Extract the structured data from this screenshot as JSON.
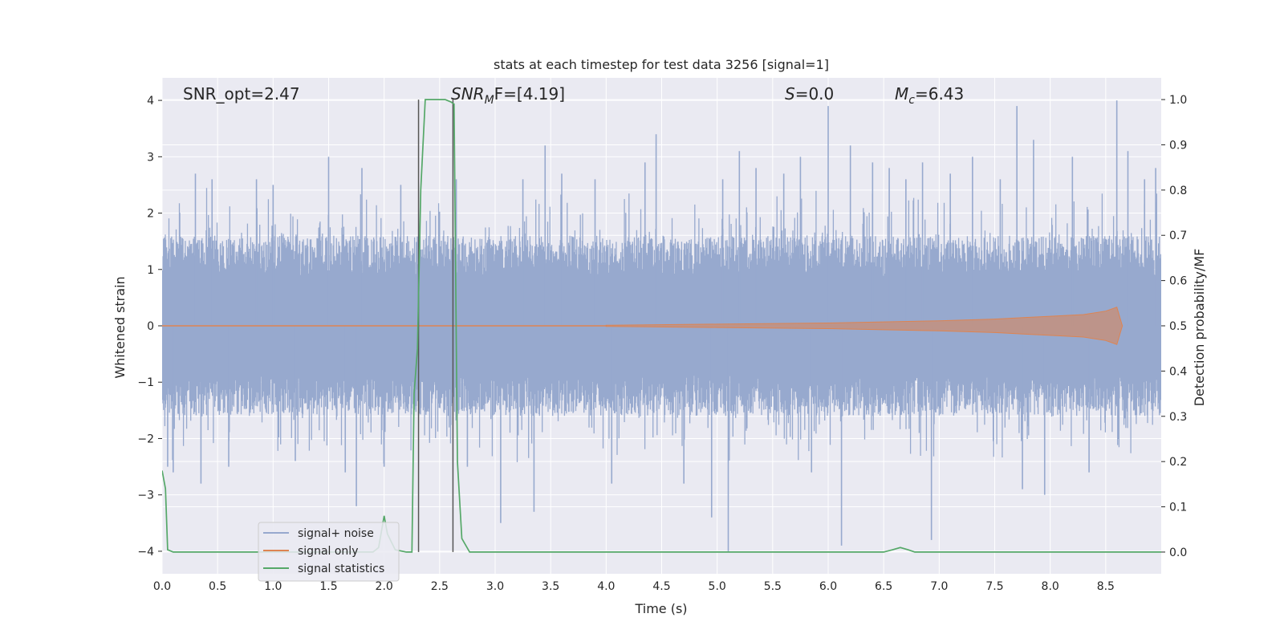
{
  "chart_data": {
    "type": "line",
    "title": "stats at each timestep for test data 3256 [signal=1]",
    "xlabel": "Time (s)",
    "ylabel": "Whitened strain",
    "y2label": "Detection probability/MF",
    "xlim": [
      0.0,
      9.0
    ],
    "ylim": [
      -4.4,
      4.4
    ],
    "y2lim": [
      -0.048,
      1.048
    ],
    "xticks": [
      "0.0",
      "0.5",
      "1.0",
      "1.5",
      "2.0",
      "2.5",
      "3.0",
      "3.5",
      "4.0",
      "4.5",
      "5.0",
      "5.5",
      "6.0",
      "6.5",
      "7.0",
      "7.5",
      "8.0",
      "8.5"
    ],
    "yticks": [
      "−4",
      "−3",
      "−2",
      "−1",
      "0",
      "1",
      "2",
      "3",
      "4"
    ],
    "y2ticks": [
      "0.0",
      "0.1",
      "0.2",
      "0.3",
      "0.4",
      "0.5",
      "0.6",
      "0.7",
      "0.8",
      "0.9",
      "1.0"
    ],
    "grid": true,
    "legend_position": "lower-left",
    "annotations": {
      "snr_opt": "SNR_opt=2.47",
      "snr_mf_main": "SNR",
      "snr_mf_sub": "M",
      "snr_mf_rest": "F=[4.19]",
      "s_main": "S",
      "s_rest": "=0.0",
      "mc_main": "M",
      "mc_sub": "c",
      "mc_rest": "=6.43"
    },
    "vlines_x": [
      2.31,
      2.62
    ],
    "series": [
      {
        "name": "signal+ noise",
        "color": "#97a9ce",
        "style": "dense noise band, amplitude mostly within ±1.6 with spikes up to ±4",
        "band": [
          -1.6,
          1.6
        ],
        "spikes": [
          [
            0.05,
            -2.5
          ],
          [
            0.1,
            -2.6
          ],
          [
            0.3,
            2.7
          ],
          [
            0.35,
            -2.8
          ],
          [
            0.45,
            2.6
          ],
          [
            0.6,
            -2.5
          ],
          [
            0.85,
            2.6
          ],
          [
            1.0,
            2.5
          ],
          [
            1.2,
            -2.4
          ],
          [
            1.5,
            3.0
          ],
          [
            1.65,
            -2.6
          ],
          [
            1.75,
            -3.2
          ],
          [
            1.8,
            2.8
          ],
          [
            2.0,
            -2.5
          ],
          [
            2.15,
            2.5
          ],
          [
            2.65,
            2.6
          ],
          [
            2.75,
            -2.5
          ],
          [
            3.05,
            -3.5
          ],
          [
            3.25,
            2.6
          ],
          [
            3.35,
            -3.3
          ],
          [
            3.45,
            3.2
          ],
          [
            3.6,
            2.7
          ],
          [
            3.9,
            2.6
          ],
          [
            4.05,
            -2.8
          ],
          [
            4.35,
            2.9
          ],
          [
            4.45,
            3.4
          ],
          [
            4.7,
            -2.8
          ],
          [
            4.95,
            -3.4
          ],
          [
            5.05,
            2.6
          ],
          [
            5.1,
            -4.0
          ],
          [
            5.2,
            3.1
          ],
          [
            5.35,
            2.8
          ],
          [
            5.6,
            2.7
          ],
          [
            5.75,
            3.0
          ],
          [
            5.85,
            -2.6
          ],
          [
            6.0,
            3.9
          ],
          [
            6.12,
            -3.9
          ],
          [
            6.2,
            3.2
          ],
          [
            6.4,
            2.9
          ],
          [
            6.55,
            2.8
          ],
          [
            6.7,
            2.6
          ],
          [
            6.85,
            2.9
          ],
          [
            6.93,
            -3.8
          ],
          [
            7.1,
            2.7
          ],
          [
            7.3,
            3.0
          ],
          [
            7.55,
            2.6
          ],
          [
            7.7,
            3.9
          ],
          [
            7.75,
            -2.9
          ],
          [
            7.85,
            3.3
          ],
          [
            7.95,
            -3.0
          ],
          [
            8.2,
            3.0
          ],
          [
            8.35,
            -2.6
          ],
          [
            8.6,
            4.0
          ],
          [
            8.7,
            3.1
          ],
          [
            8.85,
            2.6
          ],
          [
            8.95,
            2.8
          ]
        ]
      },
      {
        "name": "signal only",
        "color": "#dd8452",
        "style": "chirp growing in amplitude toward merger",
        "envelope": [
          [
            4.0,
            0.01
          ],
          [
            5.0,
            0.03
          ],
          [
            6.0,
            0.05
          ],
          [
            7.0,
            0.09
          ],
          [
            7.5,
            0.12
          ],
          [
            8.0,
            0.17
          ],
          [
            8.3,
            0.2
          ],
          [
            8.5,
            0.26
          ],
          [
            8.6,
            0.33
          ],
          [
            8.65,
            0.0
          ]
        ]
      },
      {
        "name": "signal statistics",
        "color": "#55a868",
        "axis": "right",
        "x": [
          0.0,
          0.03,
          0.05,
          0.1,
          0.15,
          1.9,
          1.95,
          2.0,
          2.03,
          2.1,
          2.2,
          2.25,
          2.27,
          2.3,
          2.33,
          2.37,
          2.4,
          2.55,
          2.6,
          2.63,
          2.66,
          2.7,
          2.77,
          6.5,
          6.58,
          6.65,
          6.72,
          6.78,
          9.0
        ],
        "y": [
          0.18,
          0.14,
          0.005,
          0.0,
          0.0,
          0.0,
          0.01,
          0.08,
          0.04,
          0.005,
          0.0,
          0.0,
          0.35,
          0.45,
          0.8,
          1.0,
          1.0,
          1.0,
          0.995,
          0.99,
          0.2,
          0.03,
          0.0,
          0.0,
          0.005,
          0.01,
          0.005,
          0.0,
          0.0
        ]
      }
    ]
  }
}
